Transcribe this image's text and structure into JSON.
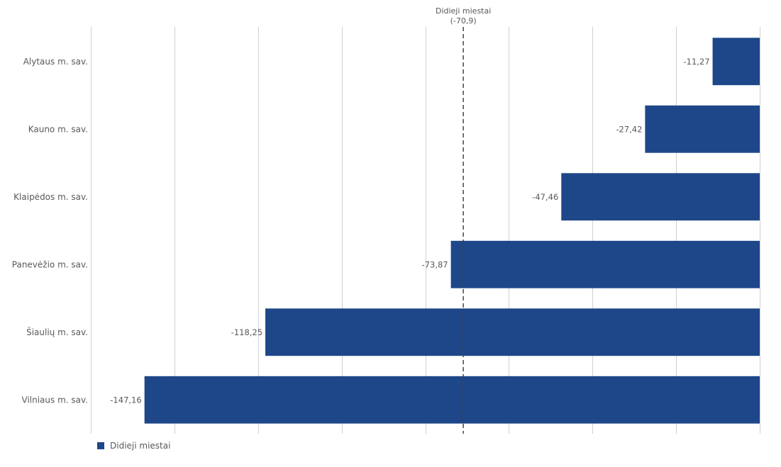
{
  "chart_data": {
    "type": "bar",
    "orientation": "horizontal",
    "categories": [
      "Alytaus m. sav.",
      "Kauno m. sav.",
      "Klaipėdos m. sav.",
      "Panevėžio m. sav.",
      "Šiaulių m. sav.",
      "Vilniaus m. sav."
    ],
    "series": [
      {
        "name": "Didieji miestai",
        "values": [
          -11.27,
          -27.42,
          -47.46,
          -73.87,
          -118.25,
          -147.16
        ],
        "color": "#1d4788"
      }
    ],
    "value_labels": [
      "-11,27",
      "-27,42",
      "-47,46",
      "-73,87",
      "-118,25",
      "-147,16"
    ],
    "xlim": [
      -160,
      0
    ],
    "grid_step": 20,
    "grid": true,
    "reference_line": {
      "label": "Didieji miestai",
      "value": -70.9,
      "value_label": "(-70,9)"
    },
    "legend": {
      "position": "bottom-left",
      "entries": [
        "Didieji miestai"
      ]
    }
  }
}
